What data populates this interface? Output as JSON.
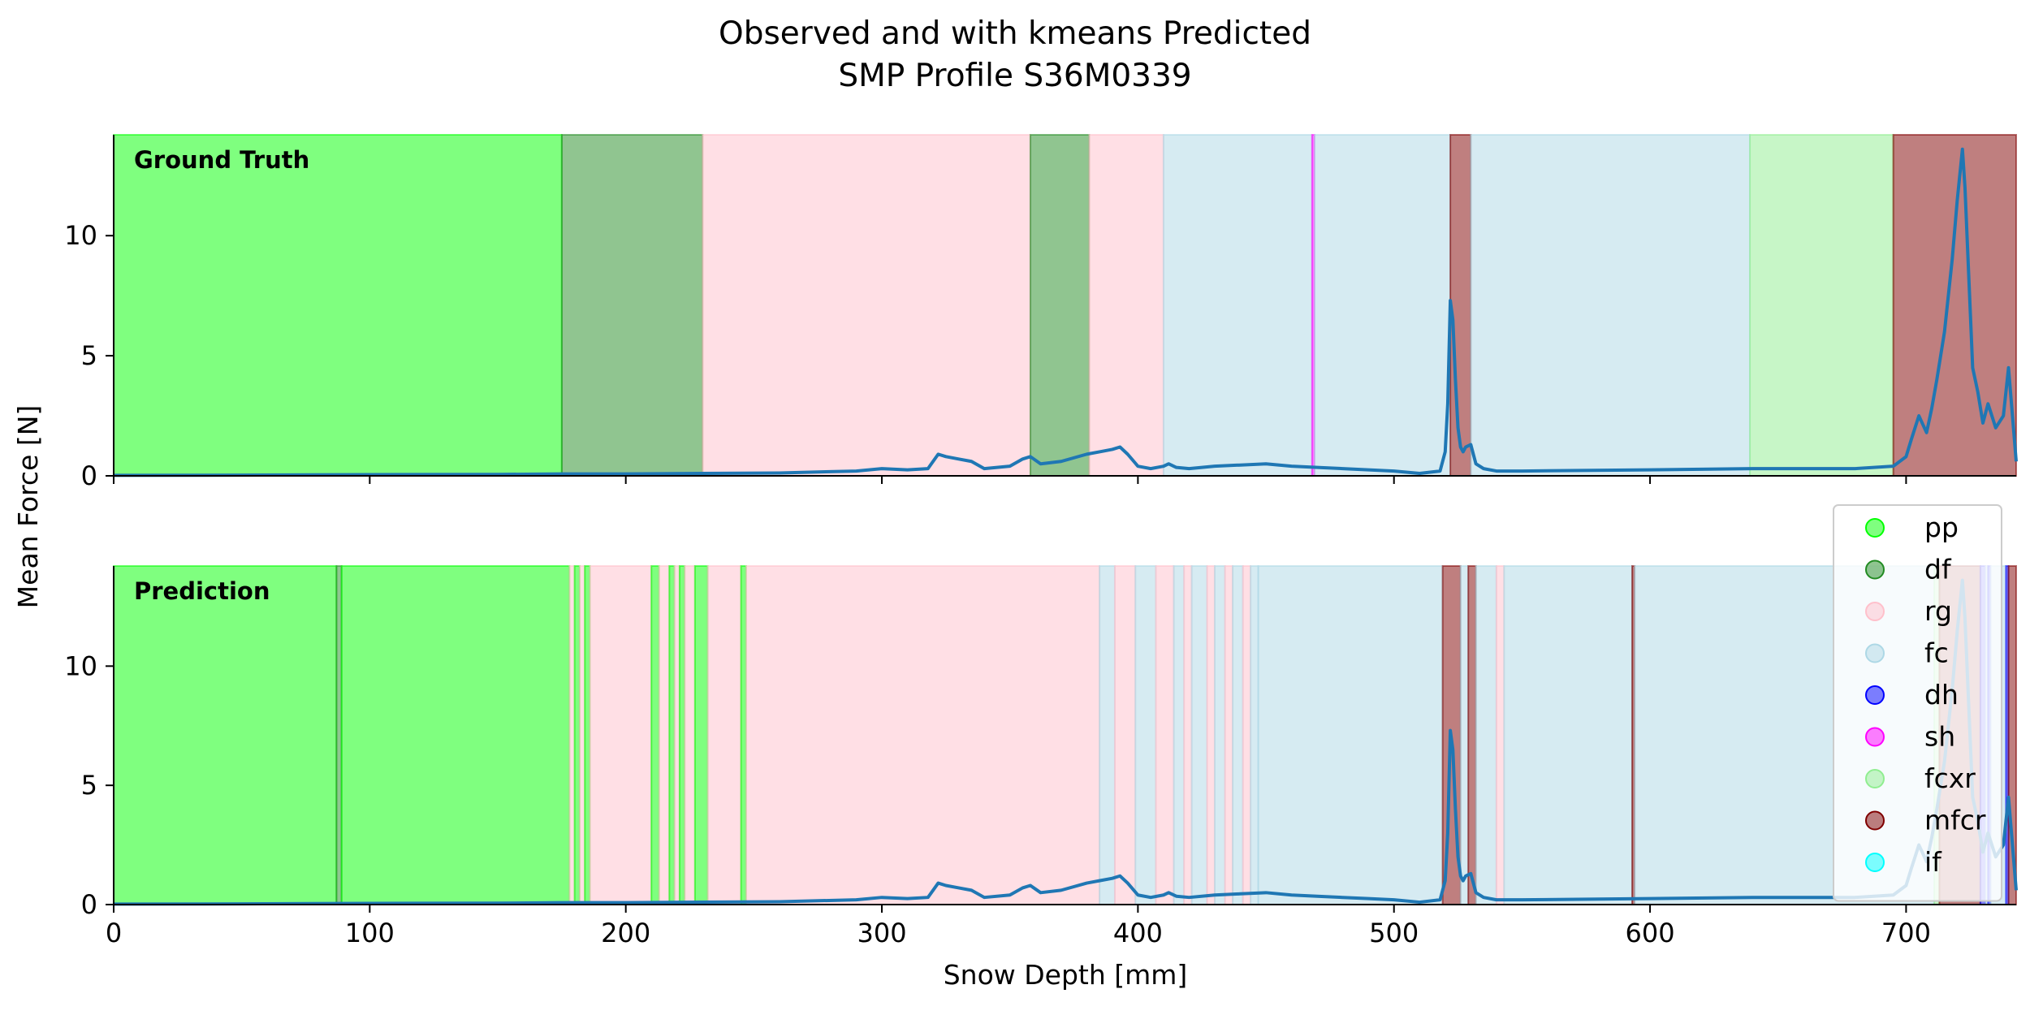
{
  "title_lines": [
    "Observed and with kmeans Predicted",
    "SMP Profile S36M0339"
  ],
  "chart_data": {
    "type": "line",
    "xlabel": "Snow Depth [mm]",
    "ylabel": "Mean Force [N]",
    "xlim": [
      0,
      743
    ],
    "ylim": [
      0,
      14.2
    ],
    "xticks": [
      0,
      100,
      200,
      300,
      400,
      500,
      600,
      700
    ],
    "yticks": [
      0,
      5,
      10
    ],
    "colors": {
      "pp": "#00ff00",
      "df": "#228b22",
      "rg": "#ffc0cb",
      "fc": "#add8e6",
      "dh": "#0000ff",
      "sh": "#ff00ff",
      "fcxr": "#90ee90",
      "mfcr": "#800000",
      "if": "#00ffff",
      "line": "#1f77b4"
    },
    "legend": {
      "position": "right",
      "entries": [
        "pp",
        "df",
        "rg",
        "fc",
        "dh",
        "sh",
        "fcxr",
        "mfcr",
        "if"
      ]
    },
    "force_profile": {
      "x": [
        0,
        50,
        100,
        150,
        175,
        200,
        230,
        260,
        290,
        300,
        310,
        318,
        322,
        325,
        330,
        335,
        340,
        350,
        355,
        358,
        362,
        370,
        380,
        385,
        390,
        393,
        396,
        400,
        405,
        410,
        412,
        415,
        420,
        430,
        440,
        450,
        460,
        470,
        480,
        490,
        500,
        510,
        518,
        520,
        521,
        522,
        523,
        524,
        525,
        526,
        527,
        528,
        530,
        532,
        535,
        540,
        550,
        600,
        640,
        680,
        695,
        700,
        702,
        705,
        708,
        710,
        712,
        715,
        718,
        720,
        722,
        723,
        724,
        725,
        726,
        728,
        730,
        732,
        735,
        738,
        740,
        743
      ],
      "y": [
        0.02,
        0.03,
        0.05,
        0.06,
        0.08,
        0.08,
        0.1,
        0.12,
        0.2,
        0.3,
        0.25,
        0.3,
        0.9,
        0.8,
        0.7,
        0.6,
        0.3,
        0.4,
        0.7,
        0.8,
        0.5,
        0.6,
        0.9,
        1.0,
        1.1,
        1.2,
        0.9,
        0.4,
        0.3,
        0.4,
        0.5,
        0.35,
        0.3,
        0.4,
        0.45,
        0.5,
        0.4,
        0.35,
        0.3,
        0.25,
        0.2,
        0.1,
        0.2,
        1.0,
        3.0,
        7.3,
        6.5,
        4.0,
        2.0,
        1.2,
        1.0,
        1.2,
        1.3,
        0.5,
        0.3,
        0.2,
        0.2,
        0.25,
        0.3,
        0.3,
        0.4,
        0.8,
        1.5,
        2.5,
        1.8,
        2.8,
        4.0,
        6.0,
        9.0,
        11.5,
        13.6,
        12.0,
        9.5,
        7.0,
        4.5,
        3.5,
        2.2,
        3.0,
        2.0,
        2.5,
        4.5,
        0.6
      ]
    },
    "panels": [
      {
        "label": "Ground Truth",
        "segments": [
          {
            "start": 0,
            "end": 175,
            "cls": "pp"
          },
          {
            "start": 175,
            "end": 230,
            "cls": "df"
          },
          {
            "start": 230,
            "end": 358,
            "cls": "rg"
          },
          {
            "start": 358,
            "end": 381,
            "cls": "df"
          },
          {
            "start": 381,
            "end": 410,
            "cls": "rg"
          },
          {
            "start": 410,
            "end": 468,
            "cls": "fc"
          },
          {
            "start": 468,
            "end": 469,
            "cls": "sh"
          },
          {
            "start": 469,
            "end": 522,
            "cls": "fc"
          },
          {
            "start": 522,
            "end": 530,
            "cls": "mfcr"
          },
          {
            "start": 530,
            "end": 639,
            "cls": "fc"
          },
          {
            "start": 639,
            "end": 695,
            "cls": "fcxr"
          },
          {
            "start": 695,
            "end": 743,
            "cls": "mfcr"
          }
        ]
      },
      {
        "label": "Prediction",
        "segments": [
          {
            "start": 0,
            "end": 87,
            "cls": "pp"
          },
          {
            "start": 87,
            "end": 89,
            "cls": "df"
          },
          {
            "start": 89,
            "end": 178,
            "cls": "pp"
          },
          {
            "start": 178,
            "end": 180,
            "cls": "rg"
          },
          {
            "start": 180,
            "end": 182,
            "cls": "pp"
          },
          {
            "start": 182,
            "end": 184,
            "cls": "rg"
          },
          {
            "start": 184,
            "end": 186,
            "cls": "pp"
          },
          {
            "start": 186,
            "end": 210,
            "cls": "rg"
          },
          {
            "start": 210,
            "end": 213,
            "cls": "pp"
          },
          {
            "start": 213,
            "end": 217,
            "cls": "rg"
          },
          {
            "start": 217,
            "end": 219,
            "cls": "pp"
          },
          {
            "start": 219,
            "end": 221,
            "cls": "rg"
          },
          {
            "start": 221,
            "end": 223,
            "cls": "pp"
          },
          {
            "start": 223,
            "end": 227,
            "cls": "rg"
          },
          {
            "start": 227,
            "end": 232,
            "cls": "pp"
          },
          {
            "start": 232,
            "end": 245,
            "cls": "rg"
          },
          {
            "start": 245,
            "end": 247,
            "cls": "pp"
          },
          {
            "start": 247,
            "end": 385,
            "cls": "rg"
          },
          {
            "start": 385,
            "end": 391,
            "cls": "fc"
          },
          {
            "start": 391,
            "end": 399,
            "cls": "rg"
          },
          {
            "start": 399,
            "end": 407,
            "cls": "fc"
          },
          {
            "start": 407,
            "end": 414,
            "cls": "rg"
          },
          {
            "start": 414,
            "end": 418,
            "cls": "fc"
          },
          {
            "start": 418,
            "end": 421,
            "cls": "rg"
          },
          {
            "start": 421,
            "end": 427,
            "cls": "fc"
          },
          {
            "start": 427,
            "end": 430,
            "cls": "rg"
          },
          {
            "start": 430,
            "end": 434,
            "cls": "fc"
          },
          {
            "start": 434,
            "end": 437,
            "cls": "rg"
          },
          {
            "start": 437,
            "end": 441,
            "cls": "fc"
          },
          {
            "start": 441,
            "end": 444,
            "cls": "rg"
          },
          {
            "start": 444,
            "end": 447,
            "cls": "fc"
          },
          {
            "start": 447,
            "end": 519,
            "cls": "fc"
          },
          {
            "start": 519,
            "end": 526,
            "cls": "mfcr"
          },
          {
            "start": 526,
            "end": 529,
            "cls": "fc"
          },
          {
            "start": 529,
            "end": 532,
            "cls": "mfcr"
          },
          {
            "start": 532,
            "end": 540,
            "cls": "fc"
          },
          {
            "start": 540,
            "end": 543,
            "cls": "rg"
          },
          {
            "start": 543,
            "end": 593,
            "cls": "fc"
          },
          {
            "start": 593,
            "end": 594,
            "cls": "mfcr"
          },
          {
            "start": 594,
            "end": 711,
            "cls": "fc"
          },
          {
            "start": 711,
            "end": 713,
            "cls": "fcxr"
          },
          {
            "start": 713,
            "end": 729,
            "cls": "mfcr"
          },
          {
            "start": 729,
            "end": 731,
            "cls": "dh"
          },
          {
            "start": 731,
            "end": 732,
            "cls": "fc"
          },
          {
            "start": 732,
            "end": 733,
            "cls": "dh"
          },
          {
            "start": 733,
            "end": 739,
            "cls": "fc"
          },
          {
            "start": 739,
            "end": 740,
            "cls": "dh"
          },
          {
            "start": 740,
            "end": 743,
            "cls": "mfcr"
          }
        ]
      }
    ]
  }
}
